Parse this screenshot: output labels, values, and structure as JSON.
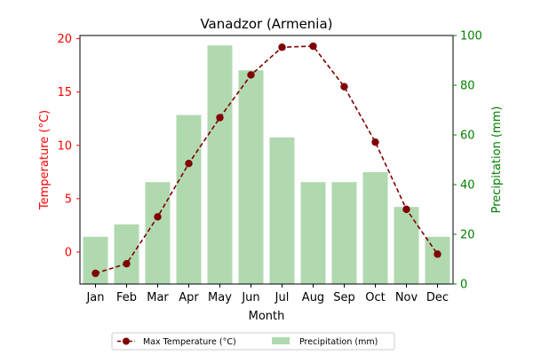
{
  "chart_data": {
    "type": "bar+line",
    "title": "Vanadzor (Armenia)",
    "xlabel": "Month",
    "categories": [
      "Jan",
      "Feb",
      "Mar",
      "Apr",
      "May",
      "Jun",
      "Jul",
      "Aug",
      "Sep",
      "Oct",
      "Nov",
      "Dec"
    ],
    "y_left": {
      "label": "Temperature (°C)",
      "color": "#ff0000",
      "ticks": [
        0,
        5,
        10,
        15,
        20
      ],
      "lim": [
        -3,
        20.3
      ]
    },
    "y_right": {
      "label": "Precipitation (mm)",
      "color": "#008000",
      "ticks": [
        0,
        20,
        40,
        60,
        80,
        100
      ],
      "lim": [
        0,
        100
      ]
    },
    "series": [
      {
        "name": "Max Temperature (°C)",
        "kind": "line",
        "axis": "left",
        "color": "#800000",
        "values": [
          -2.0,
          -1.1,
          3.3,
          8.3,
          12.6,
          16.6,
          19.2,
          19.3,
          15.5,
          10.3,
          4.0,
          -0.2
        ]
      },
      {
        "name": "Precipitation (mm)",
        "kind": "bar",
        "axis": "right",
        "color": "#b0d9b0",
        "values": [
          19,
          24,
          41,
          68,
          96,
          86,
          59,
          41,
          41,
          45,
          31,
          19
        ]
      }
    ],
    "legend_position": "bottom-center"
  }
}
